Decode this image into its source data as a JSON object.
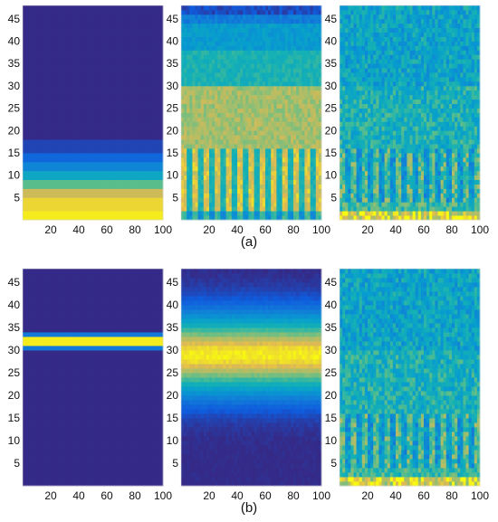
{
  "captions": {
    "a": "(a)",
    "b": "(b)"
  },
  "chart_data": [
    {
      "type": "heatmap",
      "row": "a",
      "col": 1,
      "colormap": "parula",
      "xlim": [
        0,
        100
      ],
      "ylim": [
        0,
        48
      ],
      "xticks": [
        20,
        40,
        60,
        80,
        100
      ],
      "yticks": [
        5,
        10,
        15,
        20,
        25,
        30,
        35,
        40,
        45
      ],
      "pattern": "low-band",
      "note_values": "intensity concentrated at y below ~12, strongest at y 1-6, near zero above y 18"
    },
    {
      "type": "heatmap",
      "row": "a",
      "col": 2,
      "colormap": "parula",
      "xlim": [
        0,
        100
      ],
      "ylim": [
        0,
        48
      ],
      "xticks": [
        20,
        40,
        60,
        80,
        100
      ],
      "yticks": [
        5,
        10,
        15,
        20,
        25,
        30,
        35,
        40,
        45
      ],
      "pattern": "broad-band-stripes"
    },
    {
      "type": "heatmap",
      "row": "a",
      "col": 3,
      "colormap": "parula",
      "xlim": [
        0,
        100
      ],
      "ylim": [
        0,
        48
      ],
      "xticks": [
        20,
        40,
        60,
        80,
        100
      ],
      "yticks": [
        5,
        10,
        15,
        20,
        25,
        30,
        35,
        40,
        45
      ],
      "pattern": "noisy-stripes"
    },
    {
      "type": "heatmap",
      "row": "b",
      "col": 1,
      "colormap": "parula",
      "xlim": [
        0,
        100
      ],
      "ylim": [
        0,
        48
      ],
      "xticks": [
        20,
        40,
        60,
        80,
        100
      ],
      "yticks": [
        5,
        10,
        15,
        20,
        25,
        30,
        35,
        40,
        45
      ],
      "pattern": "thin-band",
      "note_values": "single bright band at y 31-33"
    },
    {
      "type": "heatmap",
      "row": "b",
      "col": 2,
      "colormap": "parula",
      "xlim": [
        0,
        100
      ],
      "ylim": [
        0,
        48
      ],
      "xticks": [
        20,
        40,
        60,
        80,
        100
      ],
      "yticks": [
        5,
        10,
        15,
        20,
        25,
        30,
        35,
        40,
        45
      ],
      "pattern": "gaussian-band",
      "note_values": "smooth band centred near y 29"
    },
    {
      "type": "heatmap",
      "row": "b",
      "col": 3,
      "colormap": "parula",
      "xlim": [
        0,
        100
      ],
      "ylim": [
        0,
        48
      ],
      "xticks": [
        20,
        40,
        60,
        80,
        100
      ],
      "yticks": [
        5,
        10,
        15,
        20,
        25,
        30,
        35,
        40,
        45
      ],
      "pattern": "noisy-stripes"
    }
  ]
}
